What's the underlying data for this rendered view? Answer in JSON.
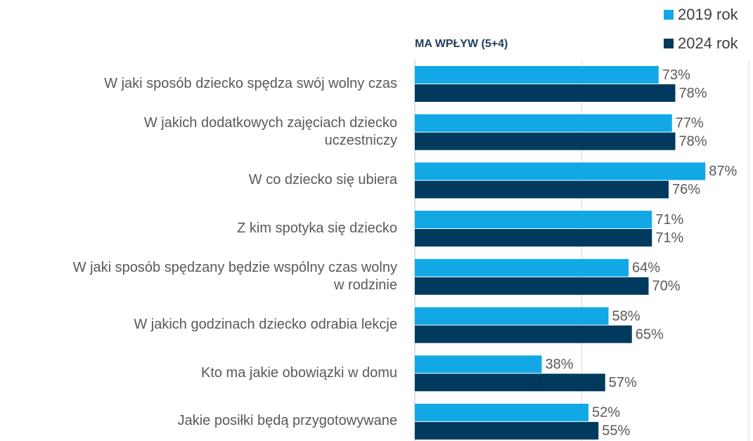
{
  "chart_data": {
    "type": "barh",
    "subtitle": "MA WPŁYW (5+4)",
    "categories": [
      "W jaki sposób dziecko spędza swój wolny czas",
      "W jakich dodatkowych zajęciach dziecko\nuczestniczy",
      "W co dziecko się ubiera",
      "Z kim spotyka się dziecko",
      "W jaki sposób spędzany będzie wspólny czas wolny\nw rodzinie",
      "W jakich godzinach dziecko odrabia lekcje",
      "Kto ma jakie obowiązki w domu",
      "Jakie posiłki będą przygotowywane"
    ],
    "series": [
      {
        "name": "2019 rok",
        "color": "#12a8e6",
        "values": [
          73,
          77,
          87,
          71,
          64,
          58,
          38,
          52
        ],
        "value_labels": [
          "73%",
          "77%",
          "87%",
          "71%",
          "64%",
          "58%",
          "38%",
          "52%"
        ]
      },
      {
        "name": "2024 rok",
        "color": "#003a5e",
        "values": [
          78,
          78,
          76,
          71,
          70,
          65,
          57,
          55
        ],
        "value_labels": [
          "78%",
          "78%",
          "76%",
          "71%",
          "70%",
          "65%",
          "57%",
          "55%"
        ]
      }
    ],
    "xlim": [
      0,
      100
    ],
    "xticks": [
      0,
      50,
      100
    ],
    "grid": true,
    "legend": "top-right"
  }
}
